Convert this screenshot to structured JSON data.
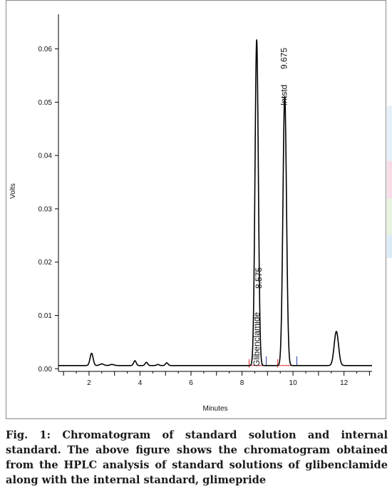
{
  "chart_data": {
    "type": "line",
    "xlabel": "Minutes",
    "ylabel": "Volts",
    "xlim": [
      0.8,
      13.1
    ],
    "ylim": [
      -0.0005,
      0.0665
    ],
    "x_ticks": [
      2,
      4,
      6,
      8,
      10,
      12
    ],
    "y_ticks": [
      0.0,
      0.01,
      0.02,
      0.03,
      0.04,
      0.05,
      0.06
    ],
    "y_tick_labels": [
      "0.00",
      "0.01",
      "0.02",
      "0.03",
      "0.04",
      "0.05",
      "0.06"
    ],
    "grid": false,
    "baseline": 0.0006,
    "peaks": [
      {
        "rt": 2.1,
        "height": 0.0023,
        "width": 0.06
      },
      {
        "rt": 2.5,
        "height": 0.0003,
        "width": 0.08
      },
      {
        "rt": 2.9,
        "height": 0.0002,
        "width": 0.08
      },
      {
        "rt": 3.8,
        "height": 0.0009,
        "width": 0.05
      },
      {
        "rt": 4.25,
        "height": 0.0006,
        "width": 0.05
      },
      {
        "rt": 4.7,
        "height": 0.0002,
        "width": 0.05
      },
      {
        "rt": 5.05,
        "height": 0.0005,
        "width": 0.05
      },
      {
        "rt": 8.575,
        "height": 0.0611,
        "width": 0.065
      },
      {
        "rt": 9.675,
        "height": 0.0505,
        "width": 0.07
      },
      {
        "rt": 11.7,
        "height": 0.0064,
        "width": 0.085
      }
    ],
    "annotations": [
      {
        "rt": 8.575,
        "label": "Glibenclamide",
        "value": "8.575"
      },
      {
        "rt": 9.675,
        "label": "Intstd",
        "value": "9.675"
      }
    ]
  },
  "caption": {
    "title": "Fig. 1: Chromatogram of standard solution and internal standard.",
    "body": "The above figure shows the chromatogram obtained from the HPLC analysis of standard solutions of glibenclamide along with the internal standard, glimepride"
  },
  "colors": {
    "trace": "#000000",
    "integration_baseline": "#e0242a",
    "integration_marker": "#2f3fa8",
    "frame": "#8a8a8a"
  }
}
